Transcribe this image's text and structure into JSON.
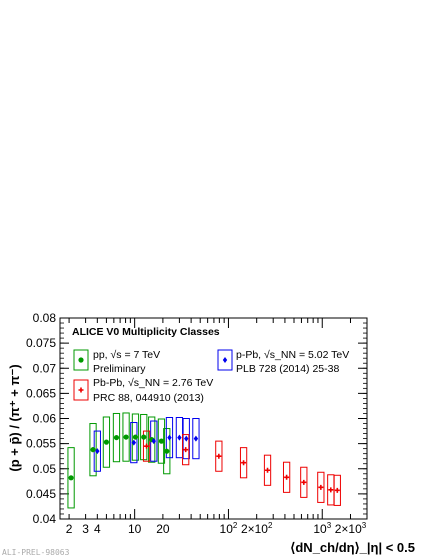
{
  "watermark": "ALI-PREL-98063",
  "chart_data": {
    "type": "scatter",
    "title": "ALICE V0 Multiplicity Classes",
    "xlabel": "⟨dN_ch/dη⟩_|η| < 0.5",
    "ylabel": "(p + p̄) / (π⁺ + π⁻)",
    "xscale": "log",
    "xlim": [
      1.6,
      3000
    ],
    "ylim": [
      0.04,
      0.08
    ],
    "y_ticks": [
      "0.04",
      "0.045",
      "0.05",
      "0.055",
      "0.06",
      "0.065",
      "0.07",
      "0.075",
      "0.08"
    ],
    "x_tick_labels": [
      {
        "x": 2,
        "text": "2"
      },
      {
        "x": 3,
        "text": "3"
      },
      {
        "x": 4,
        "text": "4"
      },
      {
        "x": 10,
        "text": "10"
      },
      {
        "x": 20,
        "text": "20"
      },
      {
        "x": 100,
        "text": "10",
        "sup": "2"
      },
      {
        "x": 200,
        "text": "2×10",
        "sup": "2"
      },
      {
        "x": 1000,
        "text": "10",
        "sup": "3"
      },
      {
        "x": 2000,
        "text": "2×10",
        "sup": "3"
      }
    ],
    "legend_position": "top",
    "series": [
      {
        "name": "pp, √s = 7 TeV Preliminary",
        "color": "#009900",
        "marker": "circle",
        "points": [
          {
            "x": 2.1,
            "y": 0.0482,
            "sys": 0.006
          },
          {
            "x": 3.6,
            "y": 0.0538,
            "sys": 0.0052
          },
          {
            "x": 5.0,
            "y": 0.0553,
            "sys": 0.005
          },
          {
            "x": 6.4,
            "y": 0.0562,
            "sys": 0.0048
          },
          {
            "x": 8.1,
            "y": 0.0563,
            "sys": 0.0048
          },
          {
            "x": 10.2,
            "y": 0.0563,
            "sys": 0.0046
          },
          {
            "x": 12.5,
            "y": 0.0563,
            "sys": 0.0045
          },
          {
            "x": 15.2,
            "y": 0.0558,
            "sys": 0.0045
          },
          {
            "x": 19.3,
            "y": 0.0555,
            "sys": 0.0044
          },
          {
            "x": 22.0,
            "y": 0.0535,
            "sys": 0.0045
          }
        ]
      },
      {
        "name": "p-Pb, √s_NN = 5.02 TeV PLB 728 (2014) 25-38",
        "color": "#0000ee",
        "marker": "diamond",
        "points": [
          {
            "x": 4.0,
            "y": 0.0535,
            "sys": 0.004
          },
          {
            "x": 9.8,
            "y": 0.0552,
            "sys": 0.004
          },
          {
            "x": 16.0,
            "y": 0.0555,
            "sys": 0.004
          },
          {
            "x": 23.5,
            "y": 0.0562,
            "sys": 0.004
          },
          {
            "x": 30.0,
            "y": 0.0562,
            "sys": 0.004
          },
          {
            "x": 35.5,
            "y": 0.056,
            "sys": 0.004
          },
          {
            "x": 45.0,
            "y": 0.056,
            "sys": 0.004
          }
        ]
      },
      {
        "name": "Pb-Pb, √s_NN = 2.76 TeV PRC 88, 044910 (2013)",
        "color": "#ee0000",
        "marker": "cross",
        "points": [
          {
            "x": 13.4,
            "y": 0.0545,
            "sys": 0.003
          },
          {
            "x": 35.0,
            "y": 0.0538,
            "sys": 0.003
          },
          {
            "x": 79.0,
            "y": 0.0525,
            "sys": 0.003
          },
          {
            "x": 145.0,
            "y": 0.0512,
            "sys": 0.003
          },
          {
            "x": 261.0,
            "y": 0.0497,
            "sys": 0.003
          },
          {
            "x": 417.0,
            "y": 0.0483,
            "sys": 0.003
          },
          {
            "x": 636.0,
            "y": 0.0473,
            "sys": 0.003
          },
          {
            "x": 966.0,
            "y": 0.0463,
            "sys": 0.003
          },
          {
            "x": 1233.0,
            "y": 0.0458,
            "sys": 0.003
          },
          {
            "x": 1447.0,
            "y": 0.0457,
            "sys": 0.003
          }
        ]
      }
    ],
    "legend": [
      {
        "line1": "pp, √s = 7 TeV",
        "line2": "Preliminary"
      },
      {
        "line1": "p-Pb, √s_NN = 5.02 TeV",
        "line2": "PLB 728 (2014) 25-38"
      },
      {
        "line1": "Pb-Pb, √s_NN = 2.76 TeV",
        "line2": "PRC 88, 044910 (2013)"
      }
    ]
  }
}
